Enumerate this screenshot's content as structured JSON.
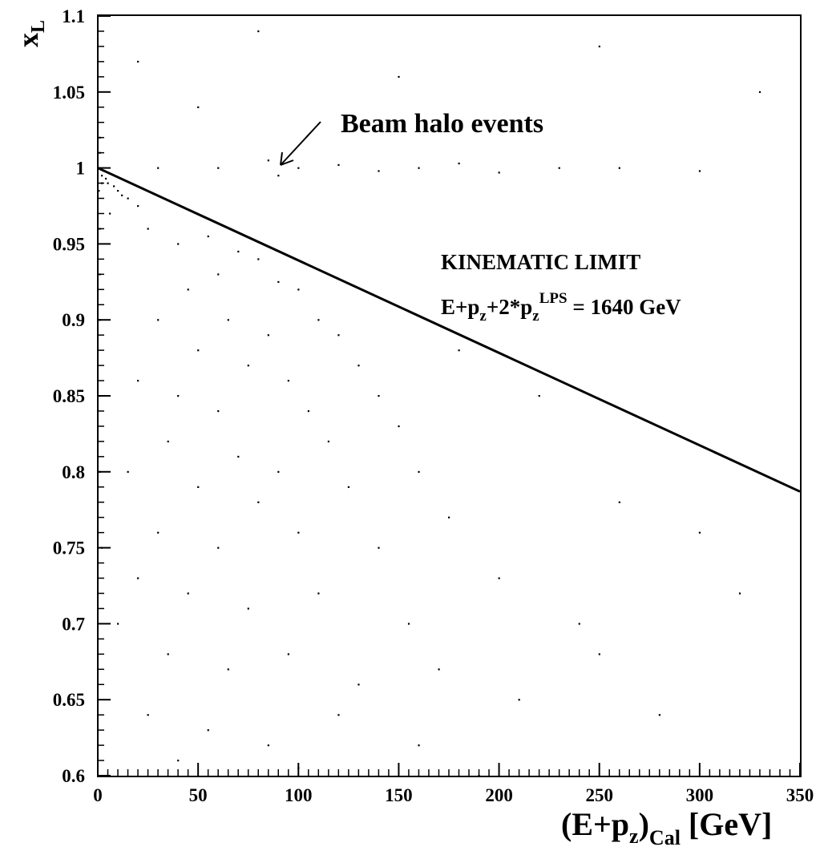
{
  "chart_data": {
    "type": "scatter",
    "ylabel": [
      "x",
      "L"
    ],
    "xlabel": [
      "(E+p",
      "z",
      ")",
      "Cal",
      " [GeV]"
    ],
    "annotations": {
      "halo": "Beam halo events",
      "limit": "KINEMATIC LIMIT",
      "formula": [
        "E+p",
        "z",
        "+2*p",
        "z",
        "LPS",
        " = 1640 GeV"
      ]
    },
    "xlim": [
      0,
      350
    ],
    "ylim": [
      0.6,
      1.1
    ],
    "xticks": [
      0,
      50,
      100,
      150,
      200,
      250,
      300,
      350
    ],
    "yticks": [
      0.6,
      0.65,
      0.7,
      0.75,
      0.8,
      0.85,
      0.9,
      0.95,
      1,
      1.05,
      1.1
    ],
    "kinematic_line": {
      "color": "#000000",
      "x": [
        0,
        350
      ],
      "values": [
        1,
        0.787
      ]
    },
    "series": [
      {
        "color": "#000000",
        "x": [
          1,
          2,
          3,
          1,
          2,
          4,
          0.5,
          1,
          5,
          8,
          10,
          12,
          15,
          20,
          6,
          1,
          1,
          1,
          1,
          1,
          2,
          30,
          60,
          85,
          90,
          100,
          120,
          140,
          160,
          180,
          200,
          230,
          260,
          300,
          50,
          150,
          250,
          80,
          200,
          330,
          20,
          25,
          40,
          55,
          70,
          80,
          60,
          45,
          90,
          100,
          30,
          65,
          85,
          110,
          120,
          50,
          75,
          95,
          130,
          20,
          40,
          60,
          105,
          140,
          35,
          70,
          90,
          115,
          150,
          15,
          50,
          80,
          125,
          160,
          30,
          60,
          100,
          140,
          175,
          20,
          45,
          75,
          110,
          155,
          200,
          10,
          35,
          65,
          95,
          130,
          170,
          25,
          55,
          85,
          120,
          160,
          40,
          100,
          210,
          240,
          260,
          300,
          220,
          180,
          250,
          320,
          280,
          190
        ],
        "values": [
          1,
          0.995,
          0.998,
          1.01,
          0.99,
          0.993,
          0.985,
          1.02,
          0.99,
          0.988,
          0.985,
          0.982,
          0.98,
          0.975,
          0.97,
          0.96,
          0.93,
          0.9,
          0.85,
          0.8,
          0.75,
          1,
          1,
          1.005,
          0.995,
          1,
          1.002,
          0.998,
          1,
          1.003,
          0.997,
          1,
          1,
          0.998,
          1.04,
          1.06,
          1.08,
          1.09,
          1.03,
          1.05,
          1.07,
          0.96,
          0.95,
          0.955,
          0.945,
          0.94,
          0.93,
          0.92,
          0.925,
          0.92,
          0.9,
          0.9,
          0.89,
          0.9,
          0.89,
          0.88,
          0.87,
          0.86,
          0.87,
          0.86,
          0.85,
          0.84,
          0.84,
          0.85,
          0.82,
          0.81,
          0.8,
          0.82,
          0.83,
          0.8,
          0.79,
          0.78,
          0.79,
          0.8,
          0.76,
          0.75,
          0.76,
          0.75,
          0.77,
          0.73,
          0.72,
          0.71,
          0.72,
          0.7,
          0.73,
          0.7,
          0.68,
          0.67,
          0.68,
          0.66,
          0.67,
          0.64,
          0.63,
          0.62,
          0.64,
          0.62,
          0.61,
          0.605,
          0.65,
          0.7,
          0.78,
          0.76,
          0.85,
          0.88,
          0.68,
          0.72,
          0.64,
          0.6
        ]
      }
    ]
  }
}
